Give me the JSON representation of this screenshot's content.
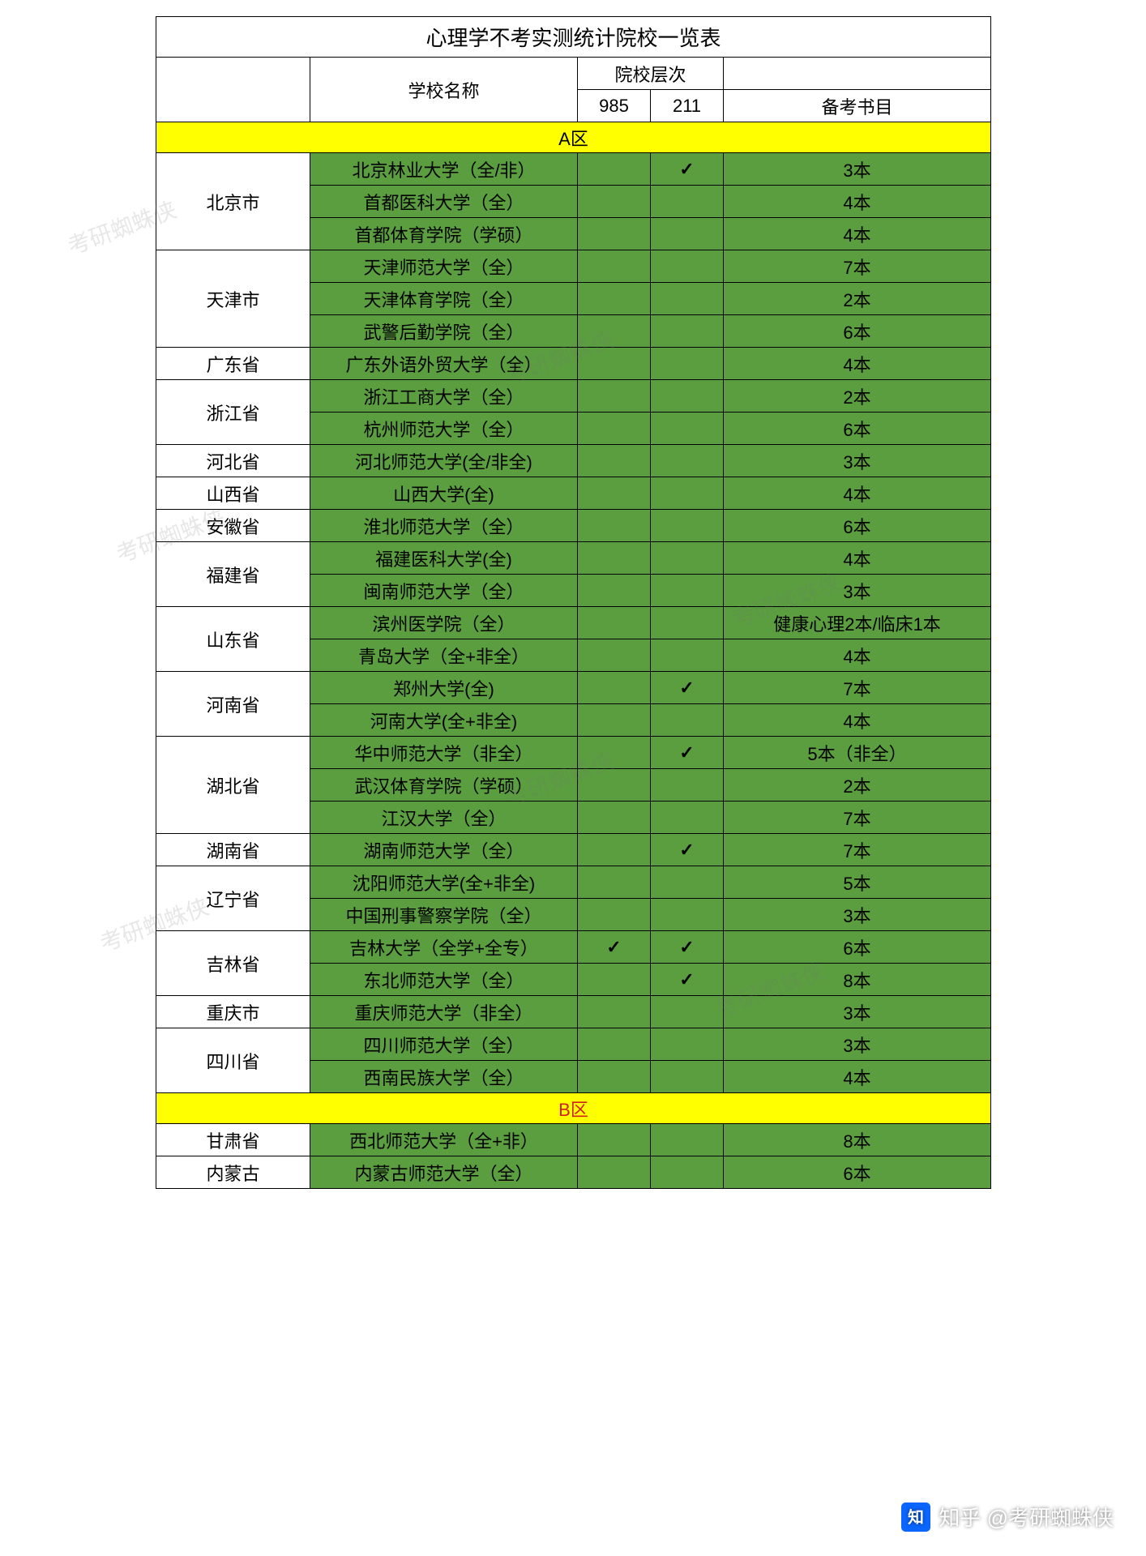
{
  "title": "心理学不考实测统计院校一览表",
  "headers": {
    "school": "学校名称",
    "level_group": "院校层次",
    "c985": "985",
    "c211": "211",
    "books": "备考书目"
  },
  "sections": [
    "A区",
    "B区"
  ],
  "colors": {
    "data_bg": "#5a9e3f",
    "section_bg": "#ffff00",
    "section_b_text": "#d02020",
    "border": "#000000",
    "page_bg": "#ffffff"
  },
  "checkmark": "✓",
  "groups_a": [
    {
      "province": "北京市",
      "rows": [
        {
          "school": "北京林业大学（全/非）",
          "c985": "",
          "c211": "✓",
          "books": "3本"
        },
        {
          "school": "首都医科大学（全）",
          "c985": "",
          "c211": "",
          "books": "4本"
        },
        {
          "school": "首都体育学院（学硕）",
          "c985": "",
          "c211": "",
          "books": "4本"
        }
      ]
    },
    {
      "province": "天津市",
      "rows": [
        {
          "school": "天津师范大学（全）",
          "c985": "",
          "c211": "",
          "books": "7本"
        },
        {
          "school": "天津体育学院（全）",
          "c985": "",
          "c211": "",
          "books": "2本"
        },
        {
          "school": "武警后勤学院（全）",
          "c985": "",
          "c211": "",
          "books": "6本"
        }
      ]
    },
    {
      "province": "广东省",
      "rows": [
        {
          "school": "广东外语外贸大学（全）",
          "c985": "",
          "c211": "",
          "books": "4本"
        }
      ]
    },
    {
      "province": "浙江省",
      "rows": [
        {
          "school": "浙江工商大学（全）",
          "c985": "",
          "c211": "",
          "books": "2本"
        },
        {
          "school": "杭州师范大学（全）",
          "c985": "",
          "c211": "",
          "books": "6本"
        }
      ]
    },
    {
      "province": "河北省",
      "rows": [
        {
          "school": "河北师范大学(全/非全)",
          "c985": "",
          "c211": "",
          "books": "3本"
        }
      ]
    },
    {
      "province": "山西省",
      "rows": [
        {
          "school": "山西大学(全)",
          "c985": "",
          "c211": "",
          "books": "4本"
        }
      ]
    },
    {
      "province": "安徽省",
      "rows": [
        {
          "school": "淮北师范大学（全）",
          "c985": "",
          "c211": "",
          "books": "6本"
        }
      ]
    },
    {
      "province": "福建省",
      "rows": [
        {
          "school": "福建医科大学(全)",
          "c985": "",
          "c211": "",
          "books": "4本"
        },
        {
          "school": "闽南师范大学（全）",
          "c985": "",
          "c211": "",
          "books": "3本"
        }
      ]
    },
    {
      "province": "山东省",
      "rows": [
        {
          "school": "滨州医学院（全）",
          "c985": "",
          "c211": "",
          "books": "健康心理2本/临床1本"
        },
        {
          "school": "青岛大学（全+非全）",
          "c985": "",
          "c211": "",
          "books": "4本"
        }
      ]
    },
    {
      "province": "河南省",
      "rows": [
        {
          "school": "郑州大学(全)",
          "c985": "",
          "c211": "✓",
          "books": "7本"
        },
        {
          "school": "河南大学(全+非全)",
          "c985": "",
          "c211": "",
          "books": "4本"
        }
      ]
    },
    {
      "province": "湖北省",
      "rows": [
        {
          "school": "华中师范大学（非全）",
          "c985": "",
          "c211": "✓",
          "books": "5本（非全）"
        },
        {
          "school": "武汉体育学院（学硕）",
          "c985": "",
          "c211": "",
          "books": "2本"
        },
        {
          "school": "江汉大学（全）",
          "c985": "",
          "c211": "",
          "books": "7本"
        }
      ]
    },
    {
      "province": "湖南省",
      "rows": [
        {
          "school": "湖南师范大学（全）",
          "c985": "",
          "c211": "✓",
          "books": "7本"
        }
      ]
    },
    {
      "province": "辽宁省",
      "rows": [
        {
          "school": "沈阳师范大学(全+非全)",
          "c985": "",
          "c211": "",
          "books": "5本"
        },
        {
          "school": "中国刑事警察学院（全）",
          "c985": "",
          "c211": "",
          "books": "3本"
        }
      ]
    },
    {
      "province": "吉林省",
      "rows": [
        {
          "school": "吉林大学（全学+全专）",
          "c985": "✓",
          "c211": "✓",
          "books": "6本"
        },
        {
          "school": "东北师范大学（全）",
          "c985": "",
          "c211": "✓",
          "books": "8本"
        }
      ]
    },
    {
      "province": "重庆市",
      "rows": [
        {
          "school": "重庆师范大学（非全）",
          "c985": "",
          "c211": "",
          "books": "3本"
        }
      ]
    },
    {
      "province": "四川省",
      "rows": [
        {
          "school": "四川师范大学（全）",
          "c985": "",
          "c211": "",
          "books": "3本"
        },
        {
          "school": "西南民族大学（全）",
          "c985": "",
          "c211": "",
          "books": "4本"
        }
      ]
    }
  ],
  "groups_b": [
    {
      "province": "甘肃省",
      "rows": [
        {
          "school": "西北师范大学（全+非）",
          "c985": "",
          "c211": "",
          "books": "8本"
        }
      ]
    },
    {
      "province": "内蒙古",
      "rows": [
        {
          "school": "内蒙古师范大学（全）",
          "c985": "",
          "c211": "",
          "books": "6本"
        }
      ]
    }
  ],
  "attribution": "知乎 @考研蜘蛛侠",
  "watermark": "考研蜘蛛侠"
}
